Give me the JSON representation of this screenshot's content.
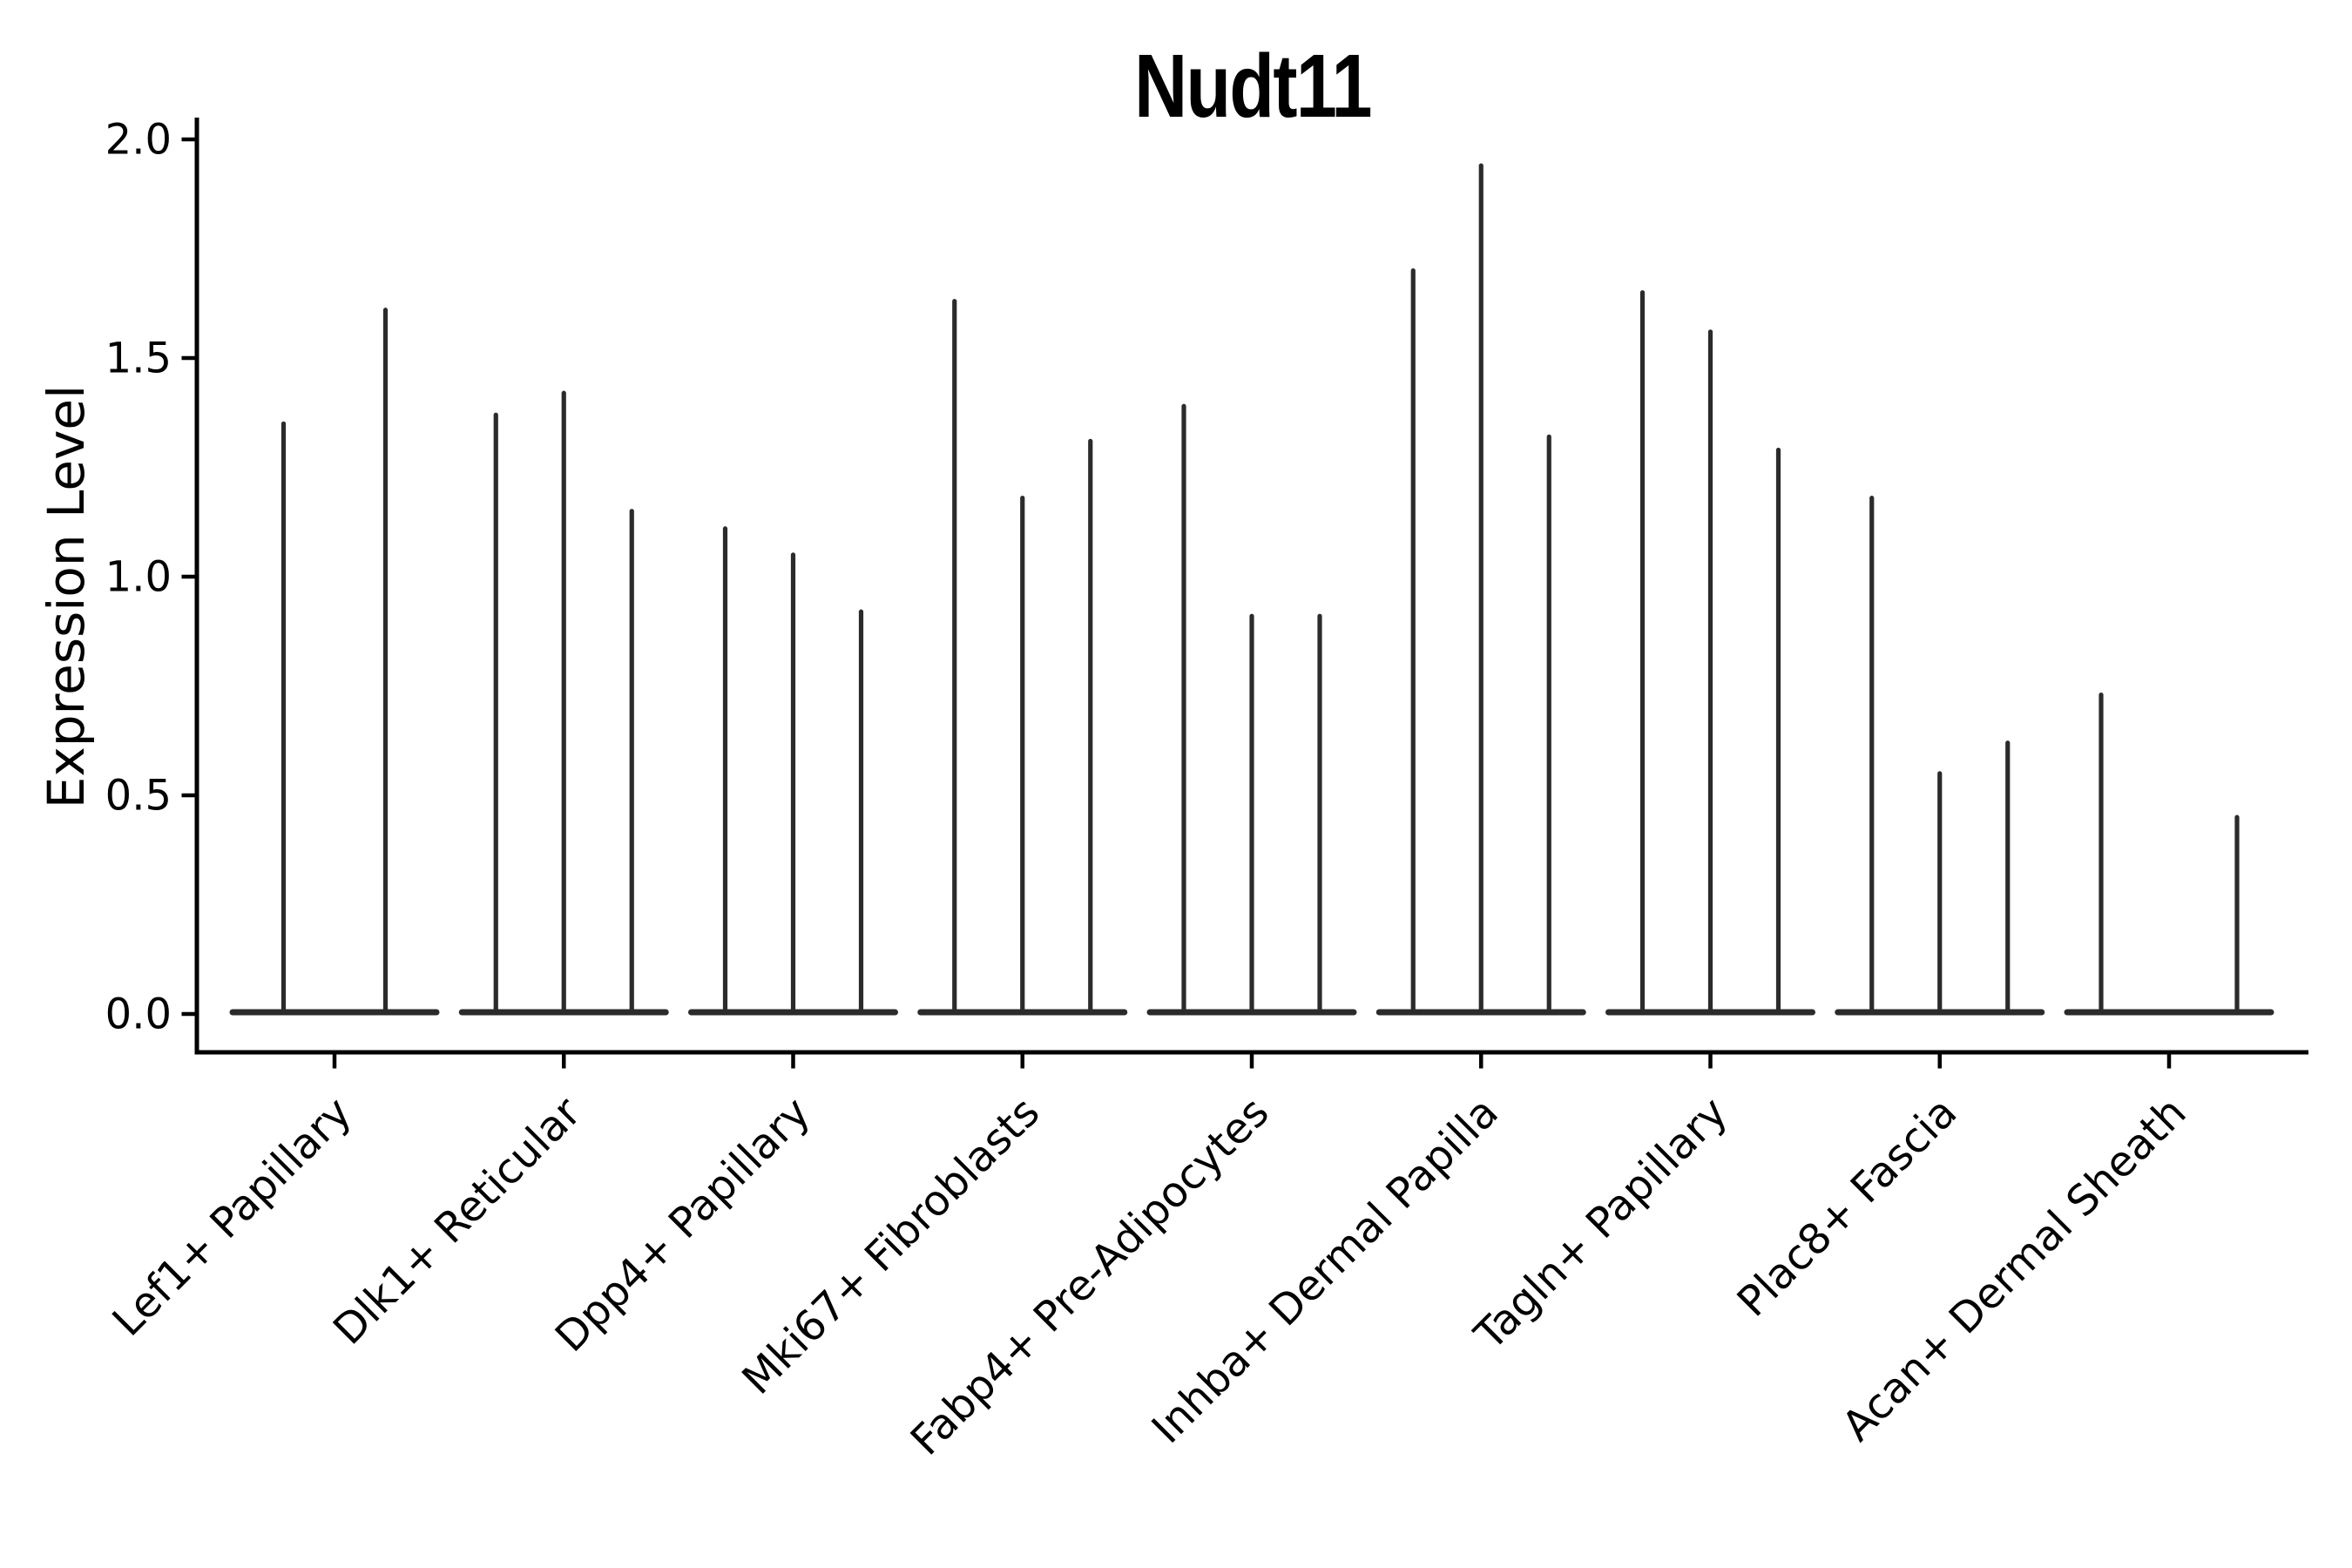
{
  "chart_data": {
    "type": "violin",
    "title": "Nudt11",
    "ylabel": "Expression Level",
    "xlabel": "",
    "ylim": [
      0,
      2.0
    ],
    "ytick_values": [
      0.0,
      0.5,
      1.0,
      1.5,
      2.0
    ],
    "ytick_labels": [
      "0.0",
      "0.5",
      "1.0",
      "1.5",
      "2.0"
    ],
    "grid": false,
    "legend": "none",
    "style_note": "Seurat/scanpy-style stacked violin of one gene: each cluster shows 2-3 extremely thin violins (split), each a wide flat base at expression 0 with a narrow vertical tail rising to the violin maximum",
    "groups": [
      {
        "category": "Lef1+ Papillary",
        "violin_maxima": [
          1.35,
          1.61
        ]
      },
      {
        "category": "Dlk1+ Reticular",
        "violin_maxima": [
          1.37,
          1.42,
          1.15
        ]
      },
      {
        "category": "Dpp4+ Papillary",
        "violin_maxima": [
          1.11,
          1.05,
          0.92
        ]
      },
      {
        "category": "Mki67+ Fibroblasts",
        "violin_maxima": [
          1.63,
          1.18,
          1.31
        ]
      },
      {
        "category": "Fabp4+ Pre-Adipocytes",
        "violin_maxima": [
          1.39,
          0.91,
          0.91
        ]
      },
      {
        "category": "Inhba+ Dermal Papilla",
        "violin_maxima": [
          1.7,
          1.94,
          1.32
        ]
      },
      {
        "category": "Tagln+ Papillary",
        "violin_maxima": [
          1.65,
          1.56,
          1.29
        ]
      },
      {
        "category": "Plac8+ Fascia",
        "violin_maxima": [
          1.18,
          0.55,
          0.62
        ]
      },
      {
        "category": "Acan+ Dermal Sheath",
        "violin_maxima": [
          0.73,
          0.0,
          0.45
        ]
      }
    ],
    "colors": {
      "violin": "#2b2b2b",
      "axis": "#000000",
      "text": "#000000",
      "background": "#ffffff"
    }
  }
}
